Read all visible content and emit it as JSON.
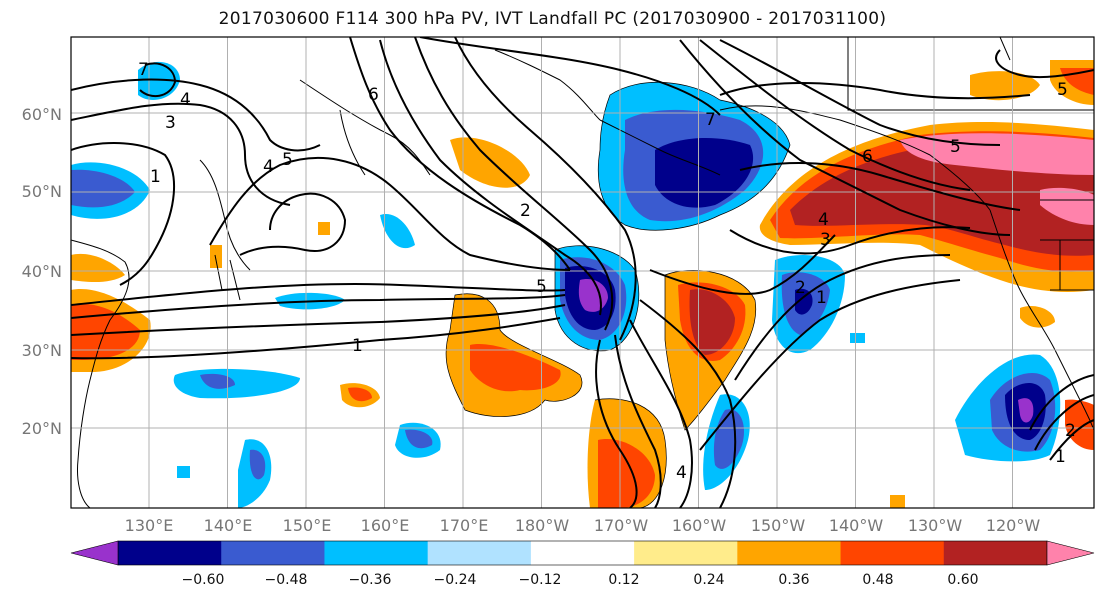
{
  "title": "2017030600 F114 300 hPa PV, IVT Landfall PC (2017030900 - 2017031100)",
  "lat_labels": [
    "60°N",
    "50°N",
    "40°N",
    "30°N",
    "20°N"
  ],
  "lon_labels": [
    "130°E",
    "140°E",
    "150°E",
    "160°E",
    "170°E",
    "180°W",
    "170°W",
    "160°W",
    "150°W",
    "140°W",
    "130°W",
    "120°W"
  ],
  "colorbar": {
    "ticks": [
      "−0.60",
      "−0.48",
      "−0.36",
      "−0.24",
      "−0.12",
      "0.12",
      "0.24",
      "0.36",
      "0.48",
      "0.60"
    ],
    "colors": [
      "#9932cc",
      "#00008b",
      "#3a5bd0",
      "#00bfff",
      "#b0e2ff",
      "#ffffff",
      "#ffec8b",
      "#ffa500",
      "#ff4500",
      "#b22222",
      "#ff82ab"
    ]
  },
  "contour_labels": [
    "1",
    "2",
    "3",
    "4",
    "5",
    "6",
    "7"
  ]
}
